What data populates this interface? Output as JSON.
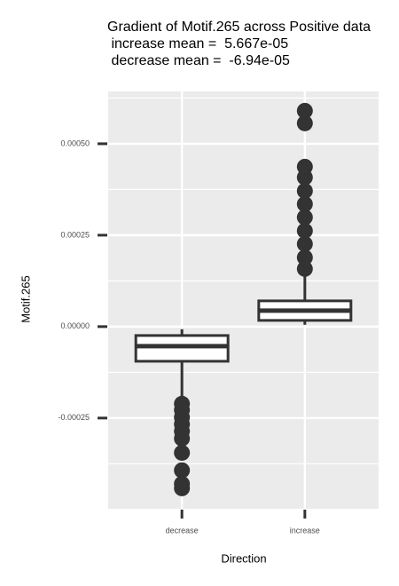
{
  "chart_data": {
    "type": "box",
    "title": "Gradient of Motif.265 across Positive data",
    "subtitle": [
      " increase mean =  5.667e-05",
      " decrease mean =  -6.94e-05"
    ],
    "x_label": "Direction",
    "y_label": "Motif.265",
    "categories": [
      "decrease",
      "increase"
    ],
    "boxes": [
      {
        "whisker_low": -0.000204,
        "q1": -9.47e-05,
        "median": -5.34e-05,
        "q3": -2.43e-05,
        "whisker_high": -7e-06,
        "outliers": [
          -0.000211,
          -0.000228,
          -0.000248,
          -0.000267,
          -0.000286,
          -0.000306,
          -0.000345,
          -0.000393,
          -0.00043,
          -0.000442
        ]
      },
      {
        "whisker_low": 5e-06,
        "q1": 1.7e-05,
        "median": 4.37e-05,
        "q3": 7.04e-05,
        "whisker_high": 0.000141,
        "outliers": [
          0.000158,
          0.000189,
          0.000226,
          0.000262,
          0.000299,
          0.000335,
          0.000371,
          0.000408,
          0.000437,
          0.000556,
          0.00059
        ]
      }
    ],
    "color": "#333333",
    "box_fill": "#ffffff",
    "panel_color": "#ebebeb",
    "grid": true,
    "ylim": [
      -0.000498,
      0.000643
    ],
    "yticks": [
      {
        "value": -0.00025,
        "label": "-0.00025"
      },
      {
        "value": 0,
        "label": "0.00000"
      },
      {
        "value": 0.00025,
        "label": "0.00025"
      },
      {
        "value": 0.0005,
        "label": "0.00050"
      }
    ]
  }
}
